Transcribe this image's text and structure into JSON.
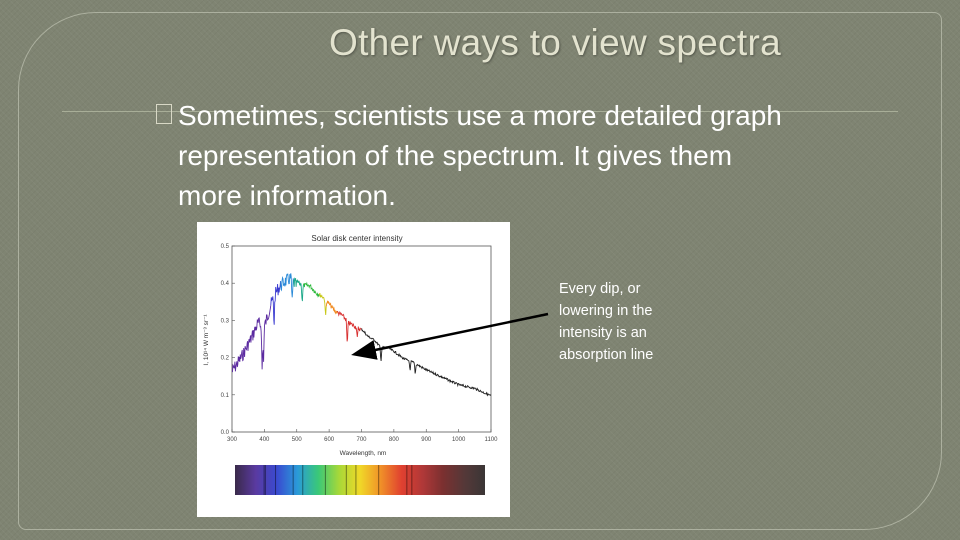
{
  "slide": {
    "title": "Other ways to view spectra",
    "bullet": "Sometimes, scientists use a more detailed graph representation of the spectrum.  It gives them more information.",
    "annotation": "Every dip, or lowering in the intensity is an absorption line"
  },
  "colors": {
    "background": "#7f8472",
    "title": "#e3e3cf",
    "text": "#ffffff"
  },
  "chart_data": {
    "type": "line",
    "title": "Solar disk center intensity",
    "xlabel": "Wavelength, nm",
    "ylabel": "I, 10¹⁴ W m⁻³ sr⁻¹",
    "xlim": [
      300,
      1100
    ],
    "ylim": [
      0.0,
      0.5
    ],
    "xticks": [
      "300",
      "400",
      "500",
      "600",
      "700",
      "800",
      "900",
      "1000",
      "1100"
    ],
    "yticks": [
      "0.0",
      "0.1",
      "0.2",
      "0.3",
      "0.4",
      "0.5"
    ],
    "grid": false,
    "series": [
      {
        "x": [
          300,
          330,
          360,
          380,
          400,
          420,
          440,
          460,
          480,
          500,
          520,
          540,
          560,
          580,
          600,
          620,
          640,
          660,
          680,
          700,
          720,
          740,
          760,
          780,
          800,
          830,
          860,
          900,
          950,
          1000,
          1050,
          1100
        ],
        "y": [
          0.18,
          0.22,
          0.27,
          0.31,
          0.3,
          0.36,
          0.4,
          0.42,
          0.43,
          0.41,
          0.4,
          0.4,
          0.38,
          0.37,
          0.35,
          0.33,
          0.32,
          0.3,
          0.29,
          0.28,
          0.26,
          0.25,
          0.23,
          0.23,
          0.22,
          0.2,
          0.19,
          0.17,
          0.15,
          0.13,
          0.12,
          0.1
        ]
      }
    ],
    "absorption_dips": [
      {
        "x": 393,
        "depth": 0.12
      },
      {
        "x": 397,
        "depth": 0.1
      },
      {
        "x": 430,
        "depth": 0.08
      },
      {
        "x": 486,
        "depth": 0.06
      },
      {
        "x": 517,
        "depth": 0.05
      },
      {
        "x": 589,
        "depth": 0.05
      },
      {
        "x": 656,
        "depth": 0.07
      },
      {
        "x": 687,
        "depth": 0.03
      },
      {
        "x": 760,
        "depth": 0.04
      },
      {
        "x": 850,
        "depth": 0.03
      },
      {
        "x": 866,
        "depth": 0.03
      }
    ],
    "spectrum_strip_colors": [
      "#3a2a4a",
      "#5a3aa0",
      "#3a4ad0",
      "#2a9ad8",
      "#3ac878",
      "#a8d838",
      "#f0d828",
      "#f09028",
      "#e04030",
      "#b03838",
      "#7a3030",
      "#553838",
      "#3a3636"
    ]
  }
}
